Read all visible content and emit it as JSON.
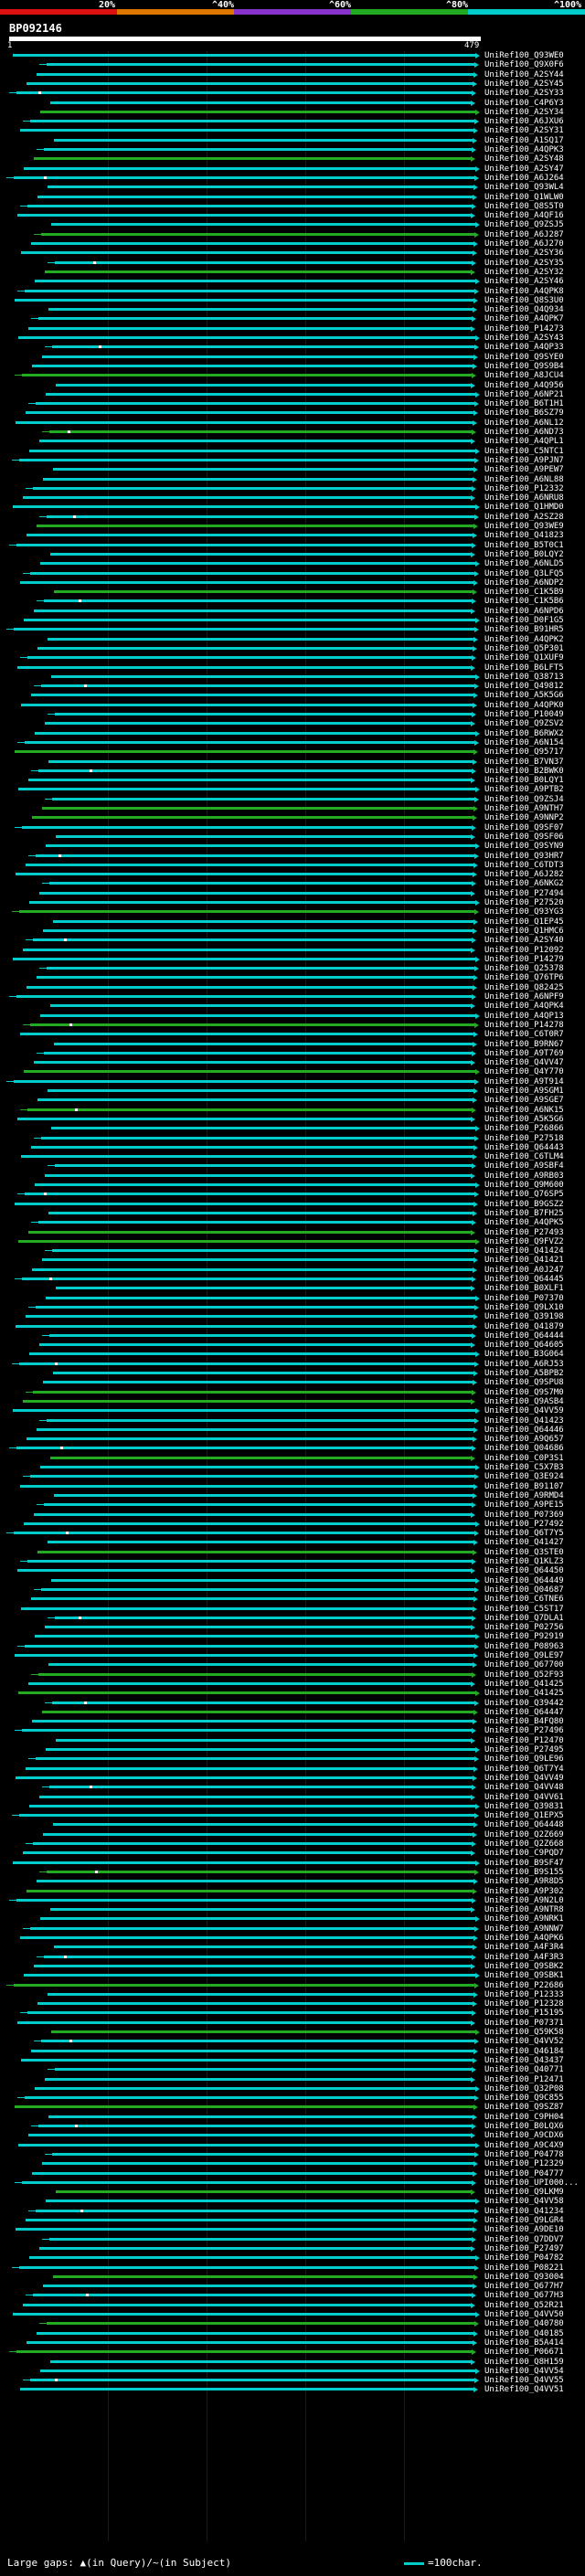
{
  "scale": {
    "labels": [
      "20%",
      "^40%",
      "^60%",
      "^80%",
      "^100%"
    ],
    "colors": [
      "#dd1111",
      "#dd7700",
      "#8833cc",
      "#22aa22",
      "#00cccc"
    ]
  },
  "query": {
    "id": "BP092146",
    "start": "1",
    "end": "479"
  },
  "hits": [
    "UniRef100_Q93WE0",
    "UniRef100_Q9X0F6",
    "UniRef100_A2SY44",
    "UniRef100_A2SY45",
    "UniRef100_A2SY33",
    "UniRef100_C4P6Y3",
    "UniRef100_A2SY34",
    "UniRef100_A6JXU6",
    "UniRef100_A2SY31",
    "UniRef100_A1SQ17",
    "UniRef100_A4QPK3",
    "UniRef100_A2SY48",
    "UniRef100_A2SY47",
    "UniRef100_A6J264",
    "UniRef100_Q93WL4",
    "UniRef100_Q1WLW0",
    "UniRef100_Q8S5T0",
    "UniRef100_A4QF16",
    "UniRef100_Q9ZSJ5",
    "UniRef100_A6J287",
    "UniRef100_A6J270",
    "UniRef100_A2SY36",
    "UniRef100_A2SY35",
    "UniRef100_A2SY32",
    "UniRef100_A2SY46",
    "UniRef100_A4QPK8",
    "UniRef100_Q8S3U0",
    "UniRef100_Q4Q934",
    "UniRef100_A4QPK7",
    "UniRef100_P14273",
    "UniRef100_A2SY43",
    "UniRef100_A4QP33",
    "UniRef100_Q9SYE0",
    "UniRef100_Q9S9B4",
    "UniRef100_A8JCU4",
    "UniRef100_A4Q956",
    "UniRef100_A6NP21",
    "UniRef100_B6T1H1",
    "UniRef100_B6SZ79",
    "UniRef100_A6NL12",
    "UniRef100_A6ND73",
    "UniRef100_A4QPL1",
    "UniRef100_C5NTC1",
    "UniRef100_A9PJN7",
    "UniRef100_A9PEW7",
    "UniRef100_A6NL88",
    "UniRef100_P12332",
    "UniRef100_A6NRU8",
    "UniRef100_Q1HMD0",
    "UniRef100_A2SZ28",
    "UniRef100_Q93WE9",
    "UniRef100_Q41823",
    "UniRef100_B5T0C1",
    "UniRef100_B0LQY2",
    "UniRef100_A6NLD5",
    "UniRef100_Q3LFQ5",
    "UniRef100_A6NDP2",
    "UniRef100_C1K5B9",
    "UniRef100_C1K5B6",
    "UniRef100_A6NPD6",
    "UniRef100_D0F1G5",
    "UniRef100_B91HR5",
    "UniRef100_A4QPK2",
    "UniRef100_Q5P301",
    "UniRef100_Q1XUF9",
    "UniRef100_B6LFT5",
    "UniRef100_Q38713",
    "UniRef100_Q49812",
    "UniRef100_A5K5G6",
    "UniRef100_A4QPK0",
    "UniRef100_P10049",
    "UniRef100_Q9ZSV2",
    "UniRef100_B6RWX2",
    "UniRef100_A6N154",
    "UniRef100_Q95717",
    "UniRef100_B7VN37",
    "UniRef100_B2BWK0",
    "UniRef100_B0LQY1",
    "UniRef100_A9PTB2",
    "UniRef100_Q9ZSJ4",
    "UniRef100_A9NTH7",
    "UniRef100_A9NNP2",
    "UniRef100_Q9SF07",
    "UniRef100_Q9SF06",
    "UniRef100_Q9SYN9",
    "UniRef100_Q93HR7",
    "UniRef100_C6TDT3",
    "UniRef100_A6J282",
    "UniRef100_A6NKG2",
    "UniRef100_P27494",
    "UniRef100_P27520",
    "UniRef100_Q93YG3",
    "UniRef100_Q1EP45",
    "UniRef100_Q1HMC6",
    "UniRef100_A2SY40",
    "UniRef100_P12092",
    "UniRef100_P14279",
    "UniRef100_Q25378",
    "UniRef100_Q76TP6",
    "UniRef100_Q82425",
    "UniRef100_A6NPF9",
    "UniRef100_A4QPK4",
    "UniRef100_A4QP13",
    "UniRef100_P14278",
    "UniRef100_C6T0R7",
    "UniRef100_B9RN67",
    "UniRef100_A9T769",
    "UniRef100_Q4VV47",
    "UniRef100_Q4Y770",
    "UniRef100_A9T914",
    "UniRef100_A9SGM1",
    "UniRef100_A9SGE7",
    "UniRef100_A6NK15",
    "UniRef100_A5K5G6",
    "UniRef100_P26866",
    "UniRef100_P27518",
    "UniRef100_Q64443",
    "UniRef100_C6TLM4",
    "UniRef100_A9SBF4",
    "UniRef100_A9RB03",
    "UniRef100_Q9M600",
    "UniRef100_Q76SP5",
    "UniRef100_B9GSZ2",
    "UniRef100_B7FH25",
    "UniRef100_A4QPK5",
    "UniRef100_P27493",
    "UniRef100_Q9FVZ2",
    "UniRef100_Q41424",
    "UniRef100_Q41421",
    "UniRef100_A0J247",
    "UniRef100_Q64445",
    "UniRef100_B0XLF1",
    "UniRef100_P07370",
    "UniRef100_Q9LX10",
    "UniRef100_Q39198",
    "UniRef100_Q41879",
    "UniRef100_Q64444",
    "UniRef100_Q64605",
    "UniRef100_B3G064",
    "UniRef100_A6RJ53",
    "UniRef100_A5BPB2",
    "UniRef100_Q9SPU8",
    "UniRef100_Q9S7M0",
    "UniRef100_Q9ASB4",
    "UniRef100_Q4VV59",
    "UniRef100_Q41423",
    "UniRef100_Q64446",
    "UniRef100_A9Q657",
    "UniRef100_Q04686",
    "UniRef100_C0P3S1",
    "UniRef100_C5X7B3",
    "UniRef100_Q3E924",
    "UniRef100_B91107",
    "UniRef100_A9RMD4",
    "UniRef100_A9PE15",
    "UniRef100_P07369",
    "UniRef100_P27492",
    "UniRef100_Q6T7Y5",
    "UniRef100_Q41427",
    "UniRef100_Q3STE0",
    "UniRef100_Q1KLZ3",
    "UniRef100_Q64450",
    "UniRef100_Q64449",
    "UniRef100_Q04687",
    "UniRef100_C6TNE6",
    "UniRef100_C5ST17",
    "UniRef100_Q7DLA1",
    "UniRef100_P02756",
    "UniRef100_P92919",
    "UniRef100_P08963",
    "UniRef100_Q9LE97",
    "UniRef100_Q67700",
    "UniRef100_Q52F93",
    "UniRef100_Q41425",
    "UniRef100_Q41425",
    "UniRef100_Q39442",
    "UniRef100_Q64447",
    "UniRef100_B4FQ80",
    "UniRef100_P27496",
    "UniRef100_P12470",
    "UniRef100_P27495",
    "UniRef100_Q9LE96",
    "UniRef100_Q6T7Y4",
    "UniRef100_Q4VV49",
    "UniRef100_Q4VV48",
    "UniRef100_Q4VV61",
    "UniRef100_Q39831",
    "UniRef100_Q1EPX5",
    "UniRef100_Q64448",
    "UniRef100_Q2Z669",
    "UniRef100_Q2Z668",
    "UniRef100_C9PQD7",
    "UniRef100_B9SF47",
    "UniRef100_B9S155",
    "UniRef100_A9R8D5",
    "UniRef100_A9P302",
    "UniRef100_A9N2L0",
    "UniRef100_A9NTR8",
    "UniRef100_A9NRK1",
    "UniRef100_A9NNW7",
    "UniRef100_A4QPK6",
    "UniRef100_A4F3R4",
    "UniRef100_A4F3R3",
    "UniRef100_Q9SBK2",
    "UniRef100_Q9SBK1",
    "UniRef100_P22686",
    "UniRef100_P12333",
    "UniRef100_P12328",
    "UniRef100_P15195",
    "UniRef100_P07371",
    "UniRef100_Q59K58",
    "UniRef100_Q4VV52",
    "UniRef100_Q46184",
    "UniRef100_Q43437",
    "UniRef100_Q40771",
    "UniRef100_P12471",
    "UniRef100_Q32P08",
    "UniRef100_Q9C855",
    "UniRef100_Q9SZ87",
    "UniRef100_C9PH04",
    "UniRef100_B0LQX6",
    "UniRef100_A9CDX6",
    "UniRef100_A9C4X9",
    "UniRef100_P04778",
    "UniRef100_P12329",
    "UniRef100_P04777",
    "UniRef100_UPI000...",
    "UniRef100_Q9LKM9",
    "UniRef100_Q4VV58",
    "UniRef100_Q41234",
    "UniRef100_Q9LGR4",
    "UniRef100_A9DE10",
    "UniRef100_Q7DDV7",
    "UniRef100_P27497",
    "UniRef100_P04782",
    "UniRef100_P08221",
    "UniRef100_Q93004",
    "UniRef100_Q677H7",
    "UniRef100_Q677H3",
    "UniRef100_Q52R21",
    "UniRef100_Q4VV50",
    "UniRef100_Q40780",
    "UniRef100_Q40185",
    "UniRef100_B5A414",
    "UniRef100_P06671",
    "UniRef100_Q8H159",
    "UniRef100_Q4VV54",
    "UniRef100_Q4VV55",
    "UniRef100_Q4VV51"
  ],
  "footer": {
    "legend_left": "Large gaps: ▲(in Query)/~(in Subject)",
    "legend_right": "=100char."
  }
}
